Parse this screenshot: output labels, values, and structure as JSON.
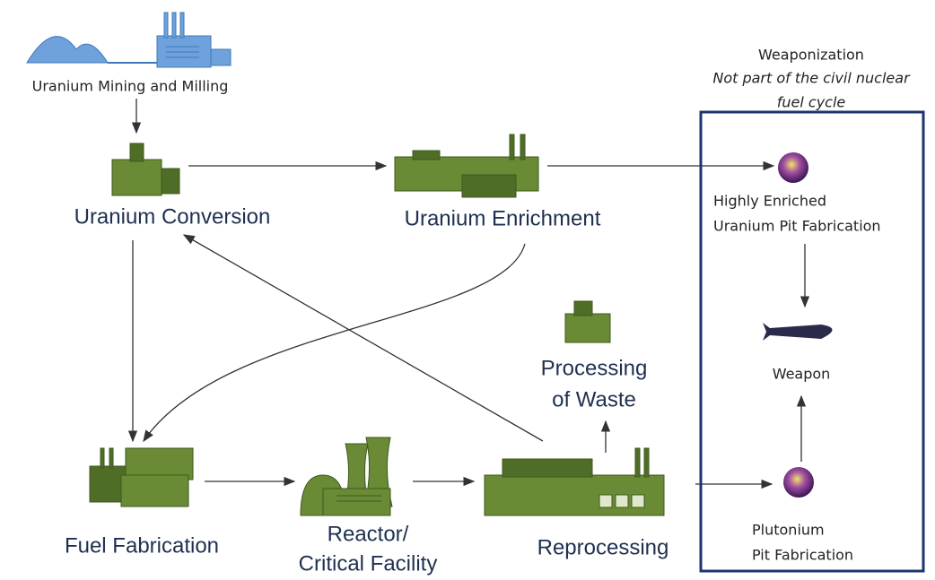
{
  "nodes": [
    {
      "label": "Uranium Mining and Milling"
    },
    {
      "label": "Uranium Conversion"
    },
    {
      "label": "Uranium Enrichment"
    },
    {
      "label": [
        "Highly Enriched",
        "Uranium Pit Fabrication"
      ]
    },
    {
      "label": "Weapon"
    },
    {
      "label": [
        "Processing",
        "of Waste"
      ]
    },
    {
      "label": "Fuel Fabrication"
    },
    {
      "label": [
        "Reactor/",
        "Critical Facility"
      ]
    },
    {
      "label": "Reprocessing"
    },
    {
      "label": [
        "Plutonium",
        "Pit Fabrication"
      ]
    }
  ],
  "weaponization": {
    "title": "Weaponization",
    "note": [
      "Not part of the civil nuclear",
      "fuel cycle"
    ]
  }
}
